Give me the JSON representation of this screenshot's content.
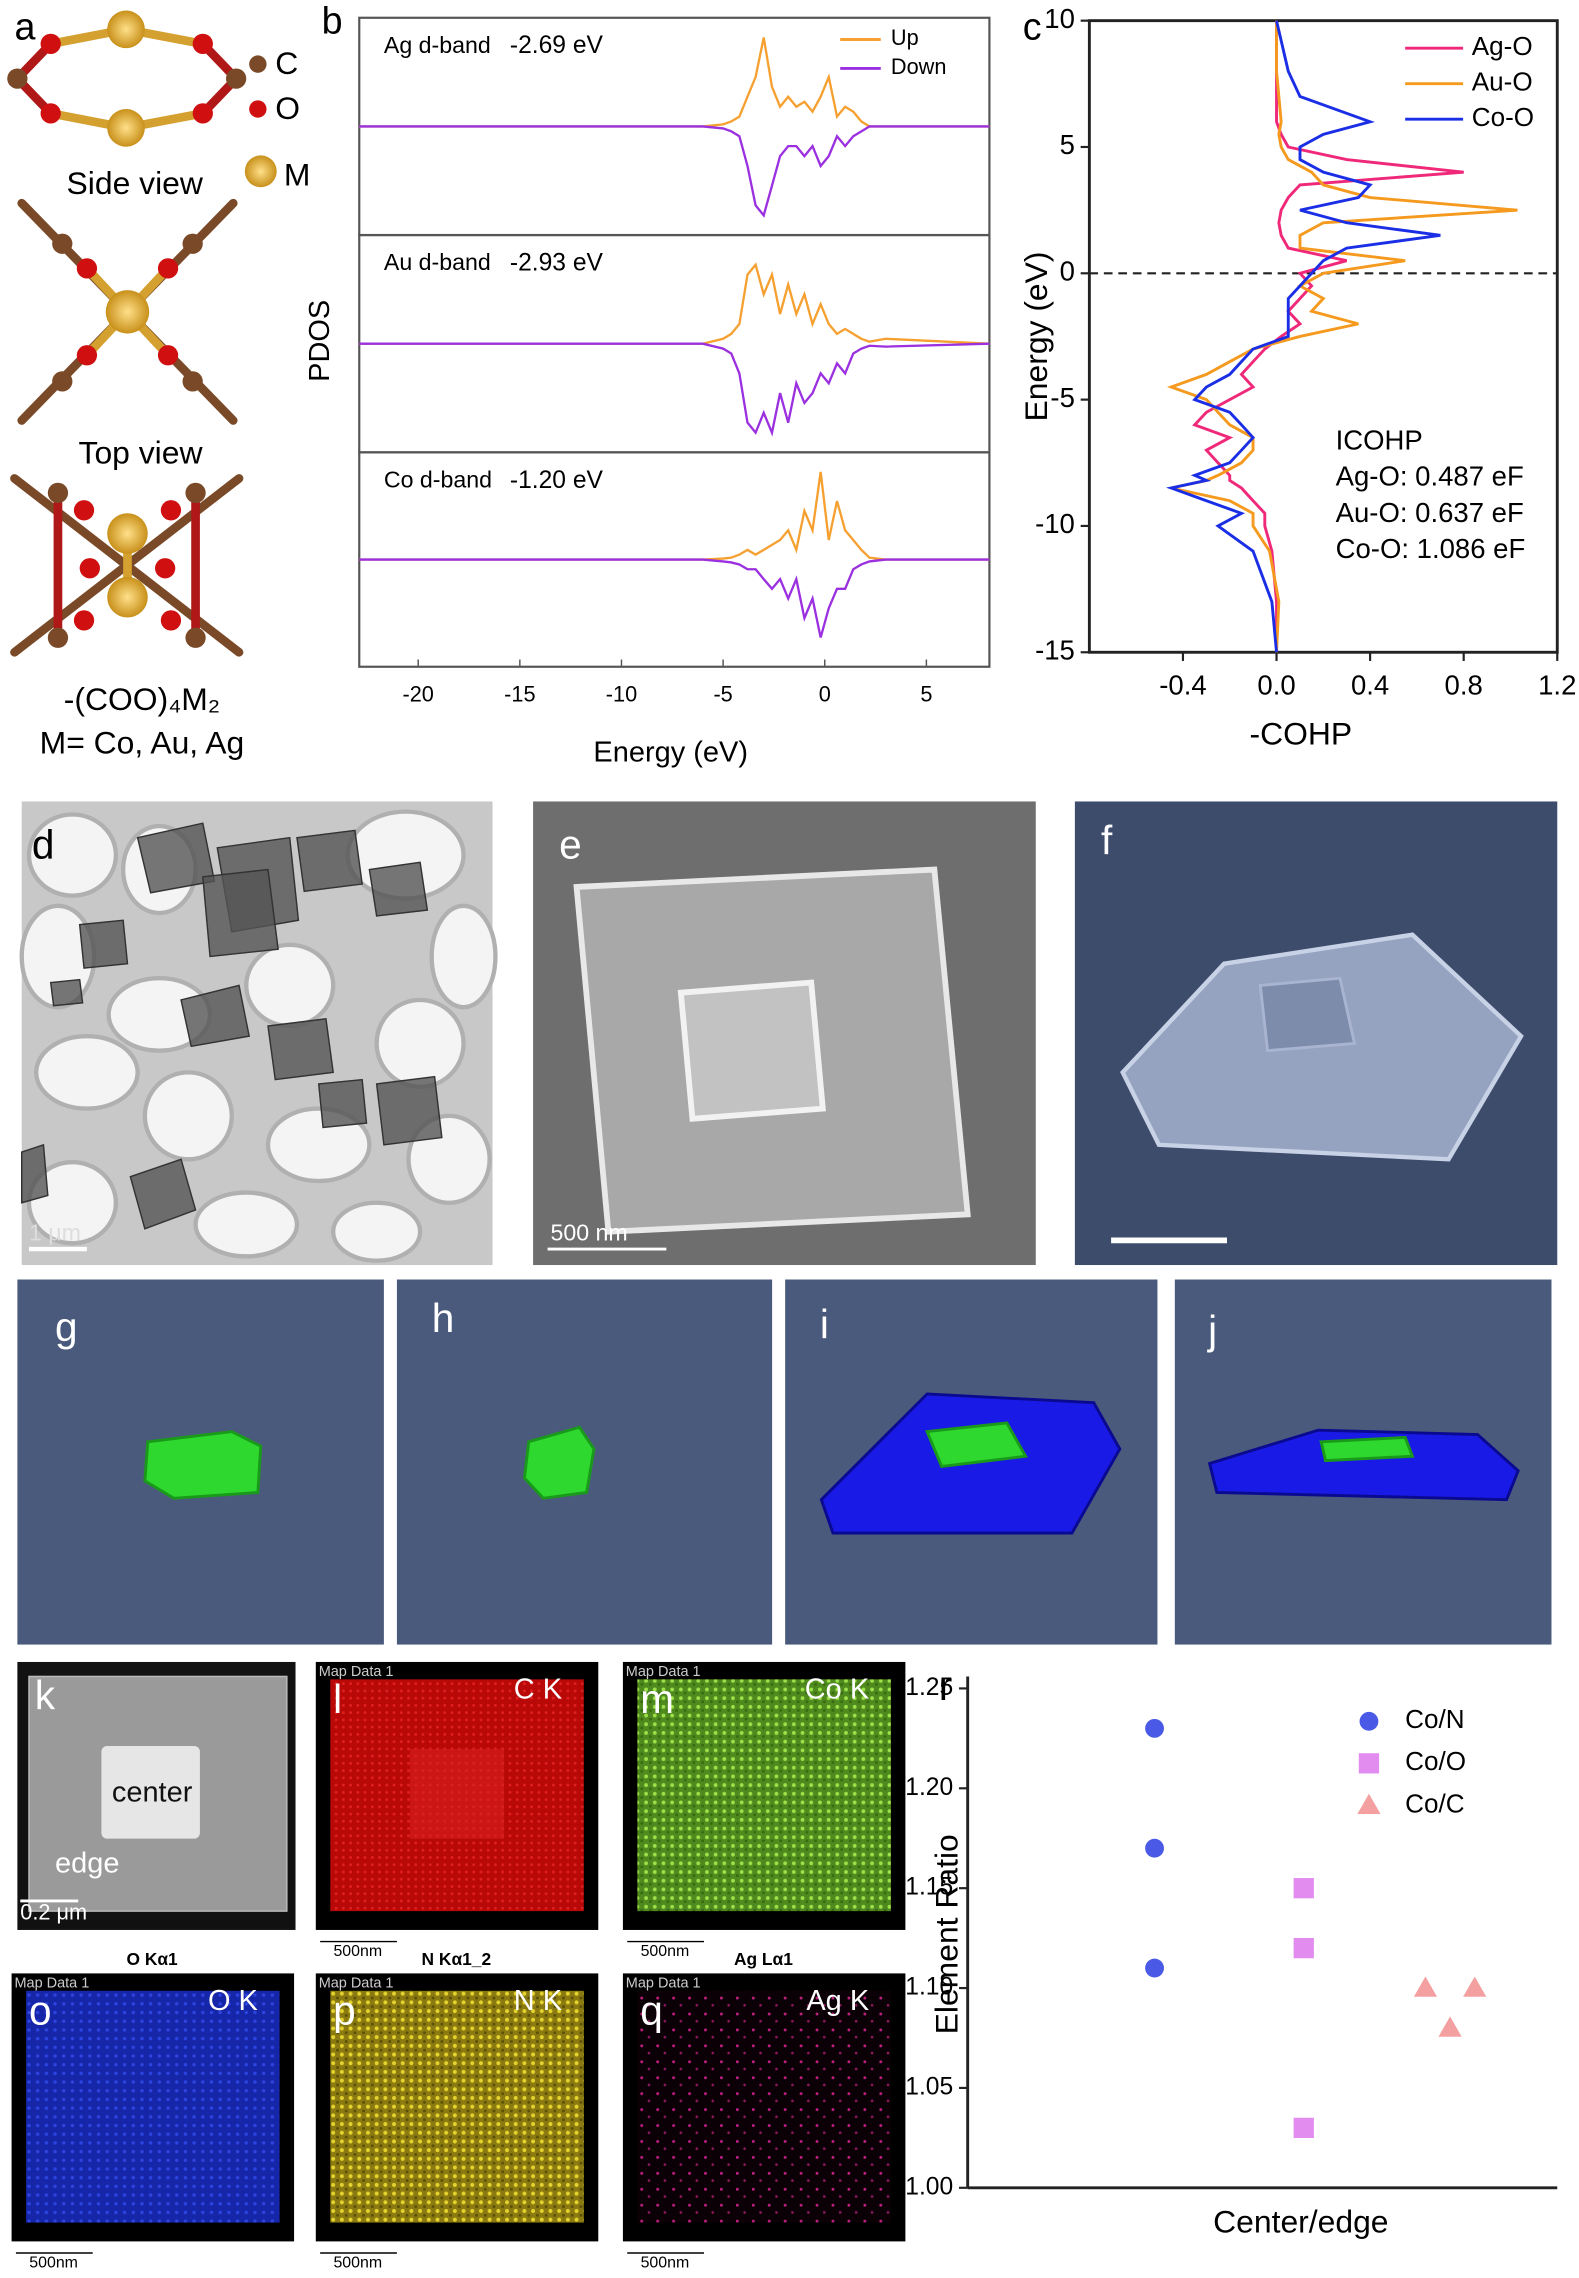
{
  "panel_a": {
    "label": "a",
    "legend": [
      "C",
      "O",
      "M"
    ],
    "side_view": "Side view",
    "top_view": "Top view",
    "formula": "-(COO)₄M₂",
    "metals": "M= Co, Au, Ag"
  },
  "panel_labels": {
    "b": "b",
    "c": "c",
    "d": "d",
    "e": "e",
    "f": "f",
    "g": "g",
    "h": "h",
    "i": "i",
    "j": "j",
    "k": "k",
    "r": "r"
  },
  "images": {
    "d_scale": "1 μm",
    "e_scale": "500 nm",
    "k_center": "center",
    "k_edge": "edge",
    "k_scale": "0.2 μm",
    "eds": [
      {
        "label": "l",
        "map": "Map Data 1",
        "element": "C K",
        "scale": "500nm"
      },
      {
        "label": "m",
        "map": "Map Data 1",
        "element": "Co K",
        "scale": "500nm"
      },
      {
        "label": "o",
        "title": "O Kα1",
        "map": "Map Data 1",
        "element": "O K",
        "scale": "500nm"
      },
      {
        "label": "p",
        "title": "N Kα1_2",
        "map": "Map Data 1",
        "element": "N K",
        "scale": "500nm"
      },
      {
        "label": "q",
        "title": "Ag Lα1",
        "map": "Map Data 1",
        "element": "Ag K",
        "scale": "500nm"
      }
    ]
  },
  "chart_data": [
    {
      "type": "line",
      "ylabel": "PDOS",
      "annotation": [
        "Ag d-band",
        "-2.69 eV"
      ],
      "x": [
        -22.9,
        -6,
        -5,
        -4.6,
        -4.2,
        -3.8,
        -3.4,
        -3,
        -2.6,
        -2.2,
        -1.8,
        -1.4,
        -1,
        -0.6,
        -0.2,
        0.2,
        0.6,
        1,
        1.4,
        1.8,
        2.2,
        3,
        8.1
      ],
      "series": [
        {
          "name": "Up",
          "color": "#f5a030",
          "values": [
            0,
            0,
            0.02,
            0.05,
            0.1,
            0.3,
            0.5,
            0.9,
            0.4,
            0.2,
            0.3,
            0.2,
            0.25,
            0.15,
            0.3,
            0.5,
            0.1,
            0.2,
            0.15,
            0.05,
            0,
            0,
            0
          ]
        },
        {
          "name": "Down",
          "color": "#9b30e0",
          "values": [
            0,
            0,
            -0.02,
            -0.05,
            -0.1,
            -0.4,
            -0.8,
            -0.9,
            -0.6,
            -0.3,
            -0.2,
            -0.2,
            -0.3,
            -0.2,
            -0.4,
            -0.3,
            -0.1,
            -0.2,
            -0.1,
            -0.05,
            0,
            0,
            0
          ]
        }
      ],
      "xlim": [
        -22.9,
        8.1
      ],
      "ylim": [
        -1.1,
        1.1
      ]
    },
    {
      "type": "line",
      "annotation": [
        "Au d-band",
        "-2.93 eV"
      ],
      "x": [
        -22.9,
        -6,
        -5,
        -4.6,
        -4.2,
        -3.8,
        -3.4,
        -3,
        -2.6,
        -2.2,
        -1.8,
        -1.4,
        -1,
        -0.6,
        -0.2,
        0.2,
        0.6,
        1,
        1.4,
        1.8,
        2.2,
        3,
        8.1
      ],
      "series": [
        {
          "color": "#f5a030",
          "values": [
            0,
            0,
            0.05,
            0.1,
            0.2,
            0.7,
            0.8,
            0.5,
            0.7,
            0.3,
            0.6,
            0.3,
            0.5,
            0.2,
            0.4,
            0.2,
            0.1,
            0.15,
            0.1,
            0.05,
            0.02,
            0.05,
            0
          ]
        },
        {
          "color": "#9b30e0",
          "values": [
            0,
            0,
            -0.05,
            -0.1,
            -0.3,
            -0.8,
            -0.9,
            -0.7,
            -0.9,
            -0.5,
            -0.8,
            -0.4,
            -0.6,
            -0.5,
            -0.3,
            -0.4,
            -0.2,
            -0.3,
            -0.1,
            -0.05,
            -0.02,
            -0.03,
            0
          ]
        }
      ],
      "xlim": [
        -22.9,
        8.1
      ],
      "ylim": [
        -1.1,
        1.1
      ]
    },
    {
      "type": "line",
      "annotation": [
        "Co d-band",
        "-1.20 eV"
      ],
      "xlabel": "Energy (eV)",
      "x": [
        -22.9,
        -6,
        -5,
        -4.6,
        -4.2,
        -3.8,
        -3.4,
        -3,
        -2.6,
        -2.2,
        -1.8,
        -1.4,
        -1,
        -0.6,
        -0.2,
        0.2,
        0.6,
        1,
        1.4,
        1.8,
        2.2,
        3,
        8.1
      ],
      "series": [
        {
          "color": "#f5a030",
          "values": [
            0,
            0,
            0.01,
            0.02,
            0.05,
            0.1,
            0.05,
            0.1,
            0.15,
            0.2,
            0.3,
            0.1,
            0.5,
            0.3,
            0.9,
            0.2,
            0.6,
            0.3,
            0.2,
            0.1,
            0.02,
            0,
            0
          ]
        },
        {
          "color": "#9b30e0",
          "values": [
            0,
            0,
            -0.02,
            -0.03,
            -0.05,
            -0.1,
            -0.1,
            -0.2,
            -0.3,
            -0.2,
            -0.4,
            -0.2,
            -0.6,
            -0.4,
            -0.8,
            -0.5,
            -0.3,
            -0.3,
            -0.1,
            -0.05,
            -0.02,
            0,
            0
          ]
        }
      ],
      "xlim": [
        -22.9,
        8.1
      ],
      "ylim": [
        -1.1,
        1.1
      ],
      "xticks": [
        -20,
        -15,
        -10,
        -5,
        0,
        5
      ]
    },
    {
      "type": "line",
      "xlabel": "-COHP",
      "ylabel": "Energy (eV)",
      "annotation": [
        "ICOHP",
        "Ag-O: 0.487 eF",
        "Au-O: 0.637 eF",
        "Co-O: 1.086 eF"
      ],
      "y": [
        -15,
        -13,
        -11,
        -10,
        -9.5,
        -9,
        -8.5,
        -8.2,
        -8,
        -7.5,
        -7,
        -6.5,
        -6,
        -5.5,
        -5,
        -4.5,
        -4,
        -3.5,
        -3,
        -2.5,
        -2,
        -1.5,
        -1,
        -0.5,
        0,
        0.5,
        1,
        1.5,
        2,
        2.5,
        3,
        3.5,
        4,
        4.5,
        5,
        5.5,
        6,
        7,
        8,
        10
      ],
      "series": [
        {
          "name": "Ag-O",
          "color": "#f0287a",
          "values": [
            0,
            0,
            -0.02,
            -0.05,
            -0.05,
            -0.1,
            -0.15,
            -0.2,
            -0.2,
            -0.25,
            -0.3,
            -0.2,
            -0.35,
            -0.3,
            -0.2,
            -0.1,
            -0.15,
            -0.1,
            -0.05,
            0.02,
            0.1,
            0.05,
            0.1,
            0.15,
            0.1,
            0.3,
            0.05,
            0.02,
            0.01,
            0.02,
            0.05,
            0.1,
            0.8,
            0.3,
            0.05,
            0.02,
            0,
            0,
            0,
            0
          ]
        },
        {
          "name": "Au-O",
          "color": "#f59a1e",
          "values": [
            0,
            0.01,
            -0.03,
            -0.1,
            -0.1,
            -0.2,
            -0.45,
            -0.3,
            -0.25,
            -0.15,
            -0.1,
            -0.1,
            -0.2,
            -0.25,
            -0.3,
            -0.45,
            -0.3,
            -0.2,
            -0.1,
            0.1,
            0.35,
            0.15,
            0.2,
            0.1,
            0.2,
            0.55,
            0.1,
            0.1,
            0.2,
            1.03,
            0.4,
            0.2,
            0.15,
            0.05,
            0.02,
            0.01,
            0.02,
            0.01,
            0,
            0
          ]
        },
        {
          "name": "Co-O",
          "color": "#1a2ee6",
          "values": [
            0,
            -0.02,
            -0.1,
            -0.25,
            -0.15,
            -0.3,
            -0.45,
            -0.3,
            -0.35,
            -0.2,
            -0.15,
            -0.1,
            -0.15,
            -0.2,
            -0.35,
            -0.3,
            -0.2,
            -0.15,
            -0.1,
            0.05,
            0.05,
            0.05,
            0.05,
            0.1,
            0.15,
            0.2,
            0.3,
            0.7,
            0.3,
            0.1,
            0.35,
            0.4,
            0.2,
            0.1,
            0.1,
            0.2,
            0.4,
            0.1,
            0.05,
            0
          ]
        }
      ],
      "xlim": [
        -0.8,
        1.2
      ],
      "ylim": [
        -15,
        10
      ],
      "xticks": [
        -0.4,
        {
          "value": 0,
          "label": "0.0"
        },
        0.4,
        0.8,
        1.2
      ],
      "yticks": [
        -15,
        -10,
        -5,
        0,
        5,
        10
      ],
      "reference_line_y": 0
    },
    {
      "type": "scatter",
      "ylabel": "Element Ratio",
      "xlabel": "Center/edge",
      "series": [
        {
          "name": "Co/N",
          "color": "#4a5ae6",
          "marker": "circle",
          "values": [
            1.23,
            1.17,
            1.11
          ]
        },
        {
          "name": "Co/O",
          "color": "#e38cf0",
          "marker": "square",
          "values": [
            1.15,
            1.12,
            1.03
          ]
        },
        {
          "name": "Co/C",
          "color": "#f4a0a0",
          "marker": "triangle",
          "values": [
            1.1,
            1.08,
            1.1
          ]
        }
      ],
      "ylim": [
        1.0,
        1.256
      ],
      "yticks": [
        {
          "value": 1.0,
          "label": "1.00"
        },
        1.05,
        {
          "value": 1.1,
          "label": "1.10"
        },
        1.15,
        {
          "value": 1.2,
          "label": "1.20"
        },
        1.25
      ]
    }
  ]
}
